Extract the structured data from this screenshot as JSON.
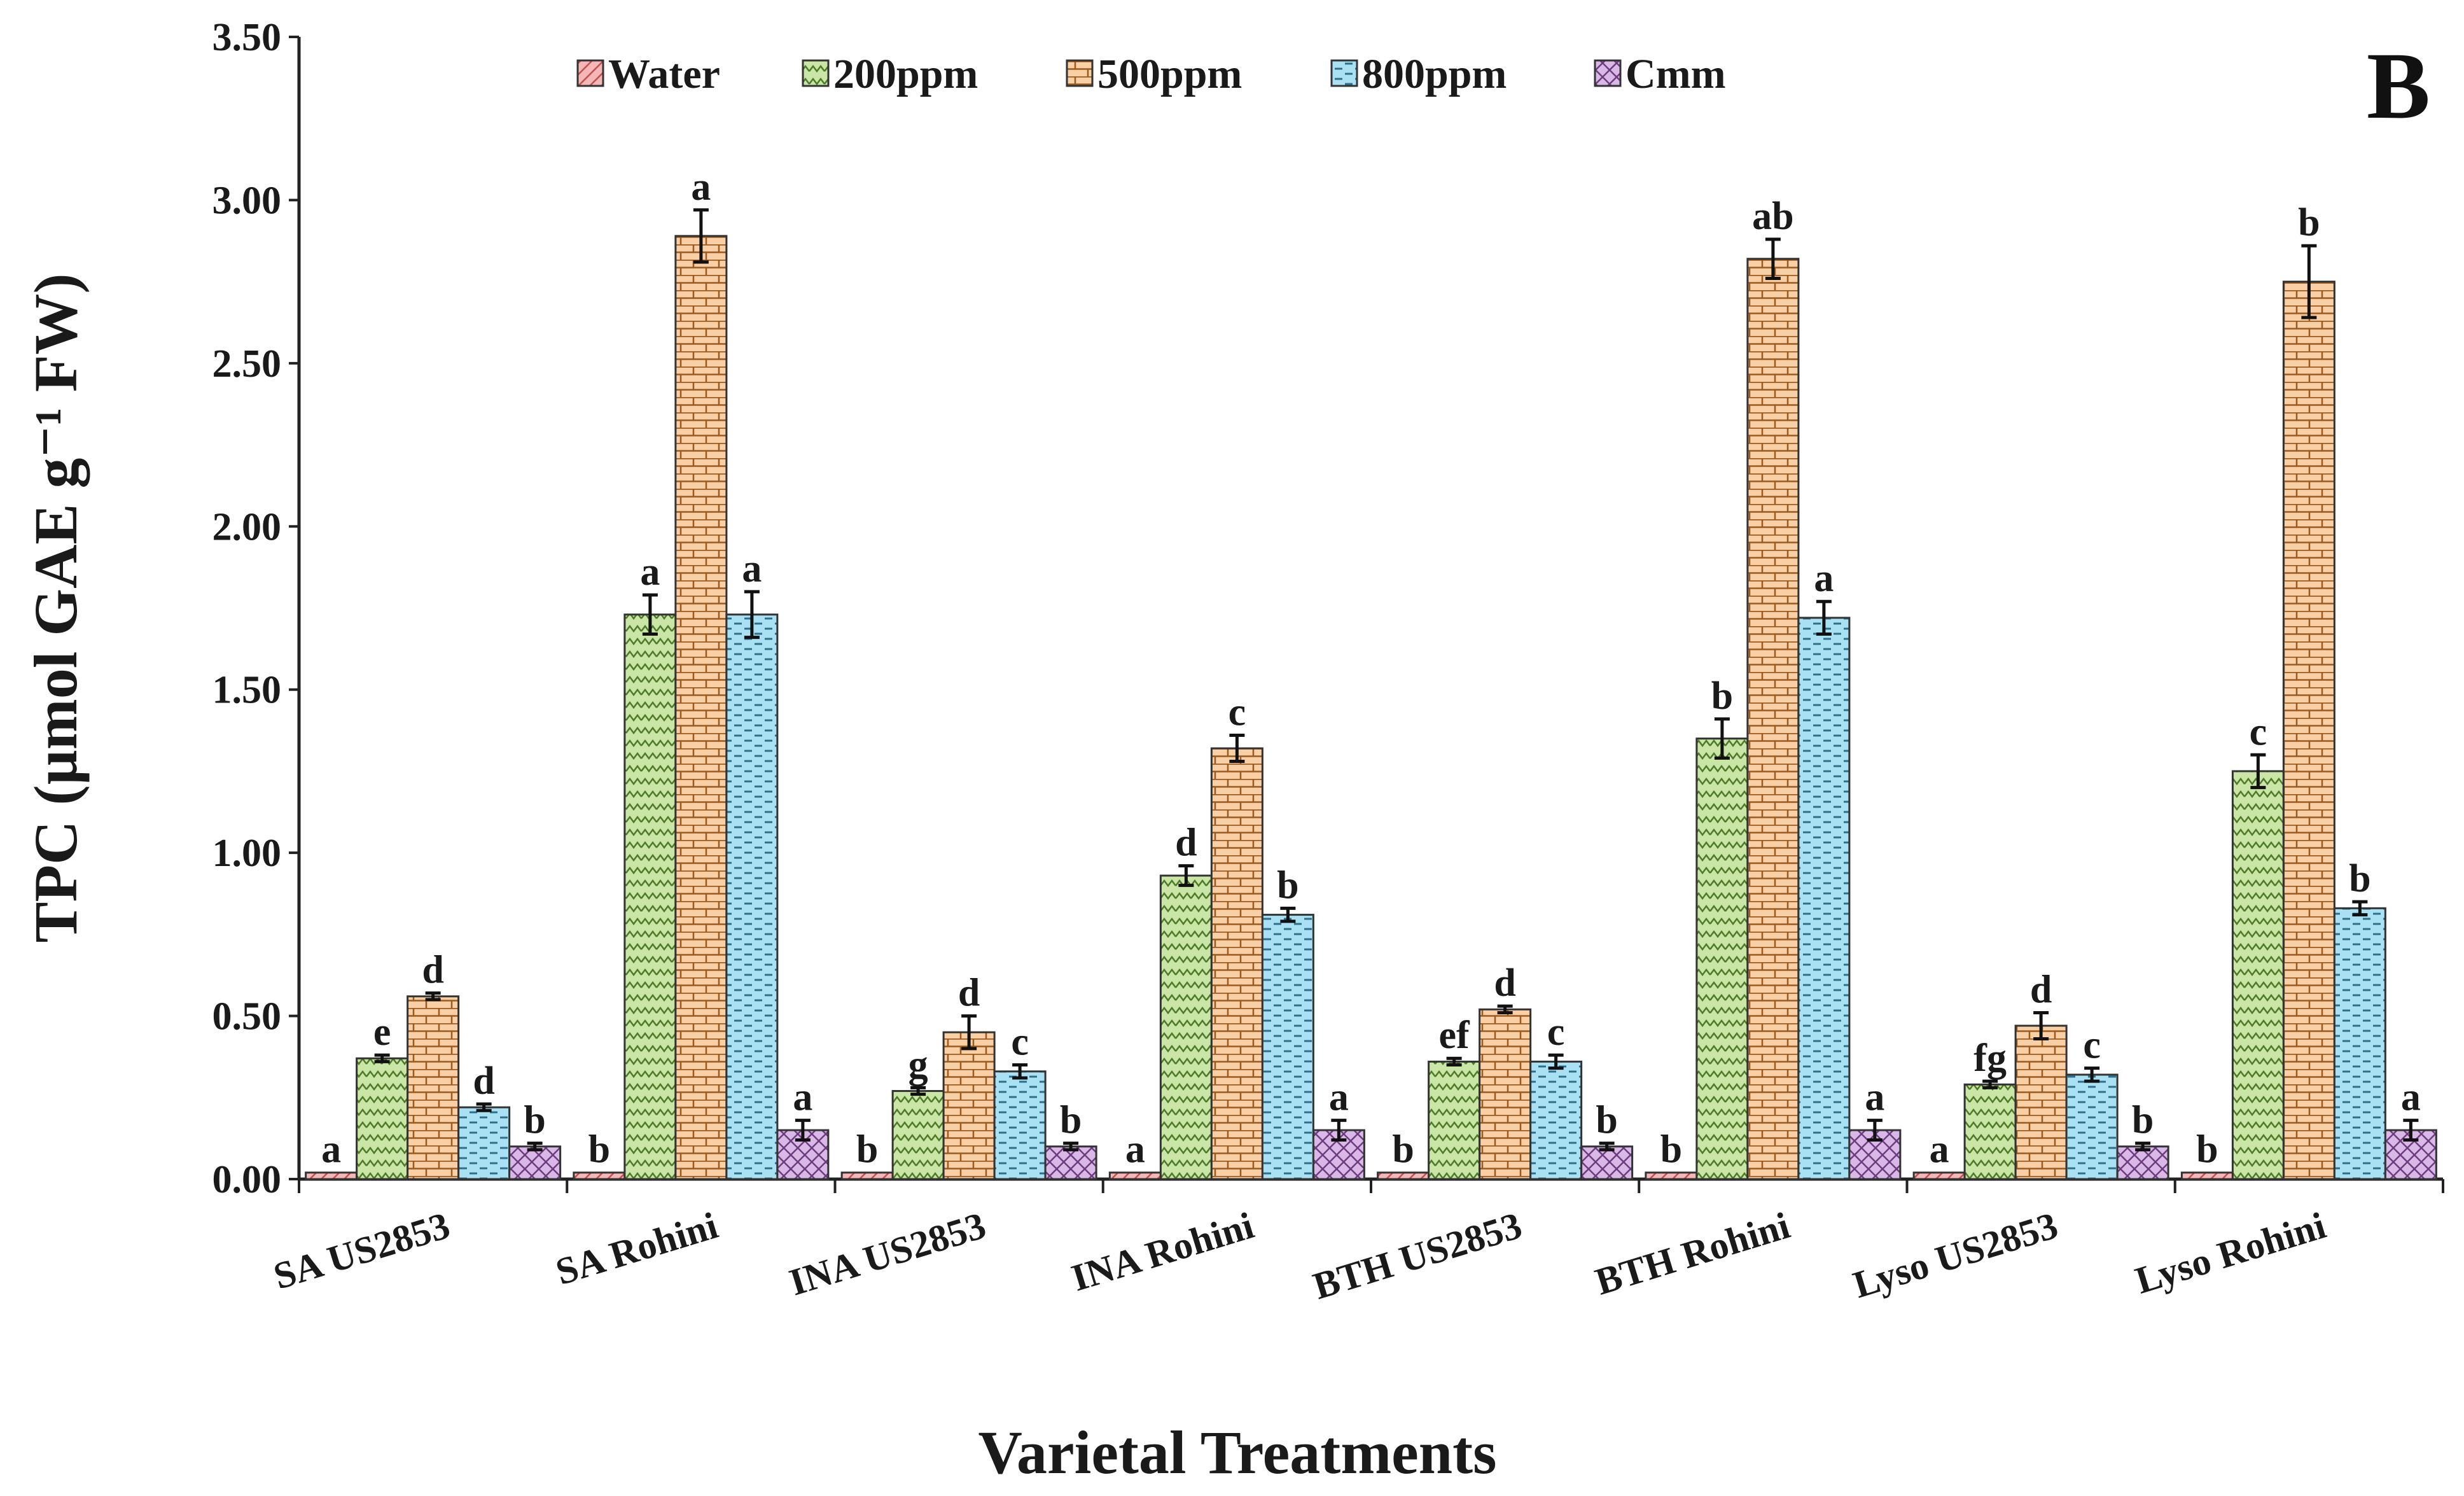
{
  "chart_data": {
    "type": "bar",
    "panel_label": "B",
    "xlabel": "Varietal Treatments",
    "ylabel": "TPC (µmol GAE g⁻¹ FW)",
    "ylim": [
      0,
      3.5
    ],
    "yticks": [
      "0.00",
      "0.50",
      "1.00",
      "1.50",
      "2.00",
      "2.50",
      "3.00",
      "3.50"
    ],
    "grid": false,
    "legend_position": "top",
    "categories": [
      "SA US2853",
      "SA Rohini",
      "INA US2853",
      "INA Rohini",
      "BTH US2853",
      "BTH Rohini",
      "Lyso US2853",
      "Lyso Rohini"
    ],
    "series": [
      {
        "name": "Water",
        "color": "#f4b6b6",
        "pattern": "diagonal-hatch",
        "values": [
          0.02,
          0.02,
          0.02,
          0.02,
          0.02,
          0.02,
          0.02,
          0.02
        ],
        "errors": [
          0,
          0,
          0,
          0,
          0,
          0,
          0,
          0
        ],
        "labels": [
          "a",
          "b",
          "b",
          "a",
          "b",
          "b",
          "a",
          "b"
        ]
      },
      {
        "name": "200ppm",
        "color": "#c9e6a6",
        "pattern": "zigzag",
        "values": [
          0.37,
          1.73,
          0.27,
          0.93,
          0.36,
          1.35,
          0.29,
          1.25
        ],
        "errors": [
          0.01,
          0.06,
          0.01,
          0.03,
          0.01,
          0.06,
          0.01,
          0.05
        ],
        "labels": [
          "e",
          "a",
          "g",
          "d",
          "ef",
          "b",
          "fg",
          "c"
        ]
      },
      {
        "name": "500ppm",
        "color": "#f9cfa6",
        "pattern": "brick",
        "values": [
          0.56,
          2.89,
          0.45,
          1.32,
          0.52,
          2.82,
          0.47,
          2.75
        ],
        "errors": [
          0.01,
          0.08,
          0.05,
          0.04,
          0.01,
          0.06,
          0.04,
          0.11
        ],
        "labels": [
          "d",
          "a",
          "d",
          "c",
          "d",
          "ab",
          "d",
          "b"
        ]
      },
      {
        "name": "800ppm",
        "color": "#a9e1f3",
        "pattern": "dashed-horizontal",
        "values": [
          0.22,
          1.73,
          0.33,
          0.81,
          0.36,
          1.72,
          0.32,
          0.83
        ],
        "errors": [
          0.01,
          0.07,
          0.02,
          0.02,
          0.02,
          0.05,
          0.02,
          0.02
        ],
        "labels": [
          "d",
          "a",
          "c",
          "b",
          "c",
          "a",
          "c",
          "b"
        ]
      },
      {
        "name": "Cmm",
        "color": "#d9b7e6",
        "pattern": "crosshatch",
        "values": [
          0.1,
          0.15,
          0.1,
          0.15,
          0.1,
          0.15,
          0.1,
          0.15
        ],
        "errors": [
          0.01,
          0.03,
          0.01,
          0.03,
          0.01,
          0.03,
          0.01,
          0.03
        ],
        "labels": [
          "b",
          "a",
          "b",
          "a",
          "b",
          "a",
          "b",
          "a"
        ]
      }
    ]
  }
}
